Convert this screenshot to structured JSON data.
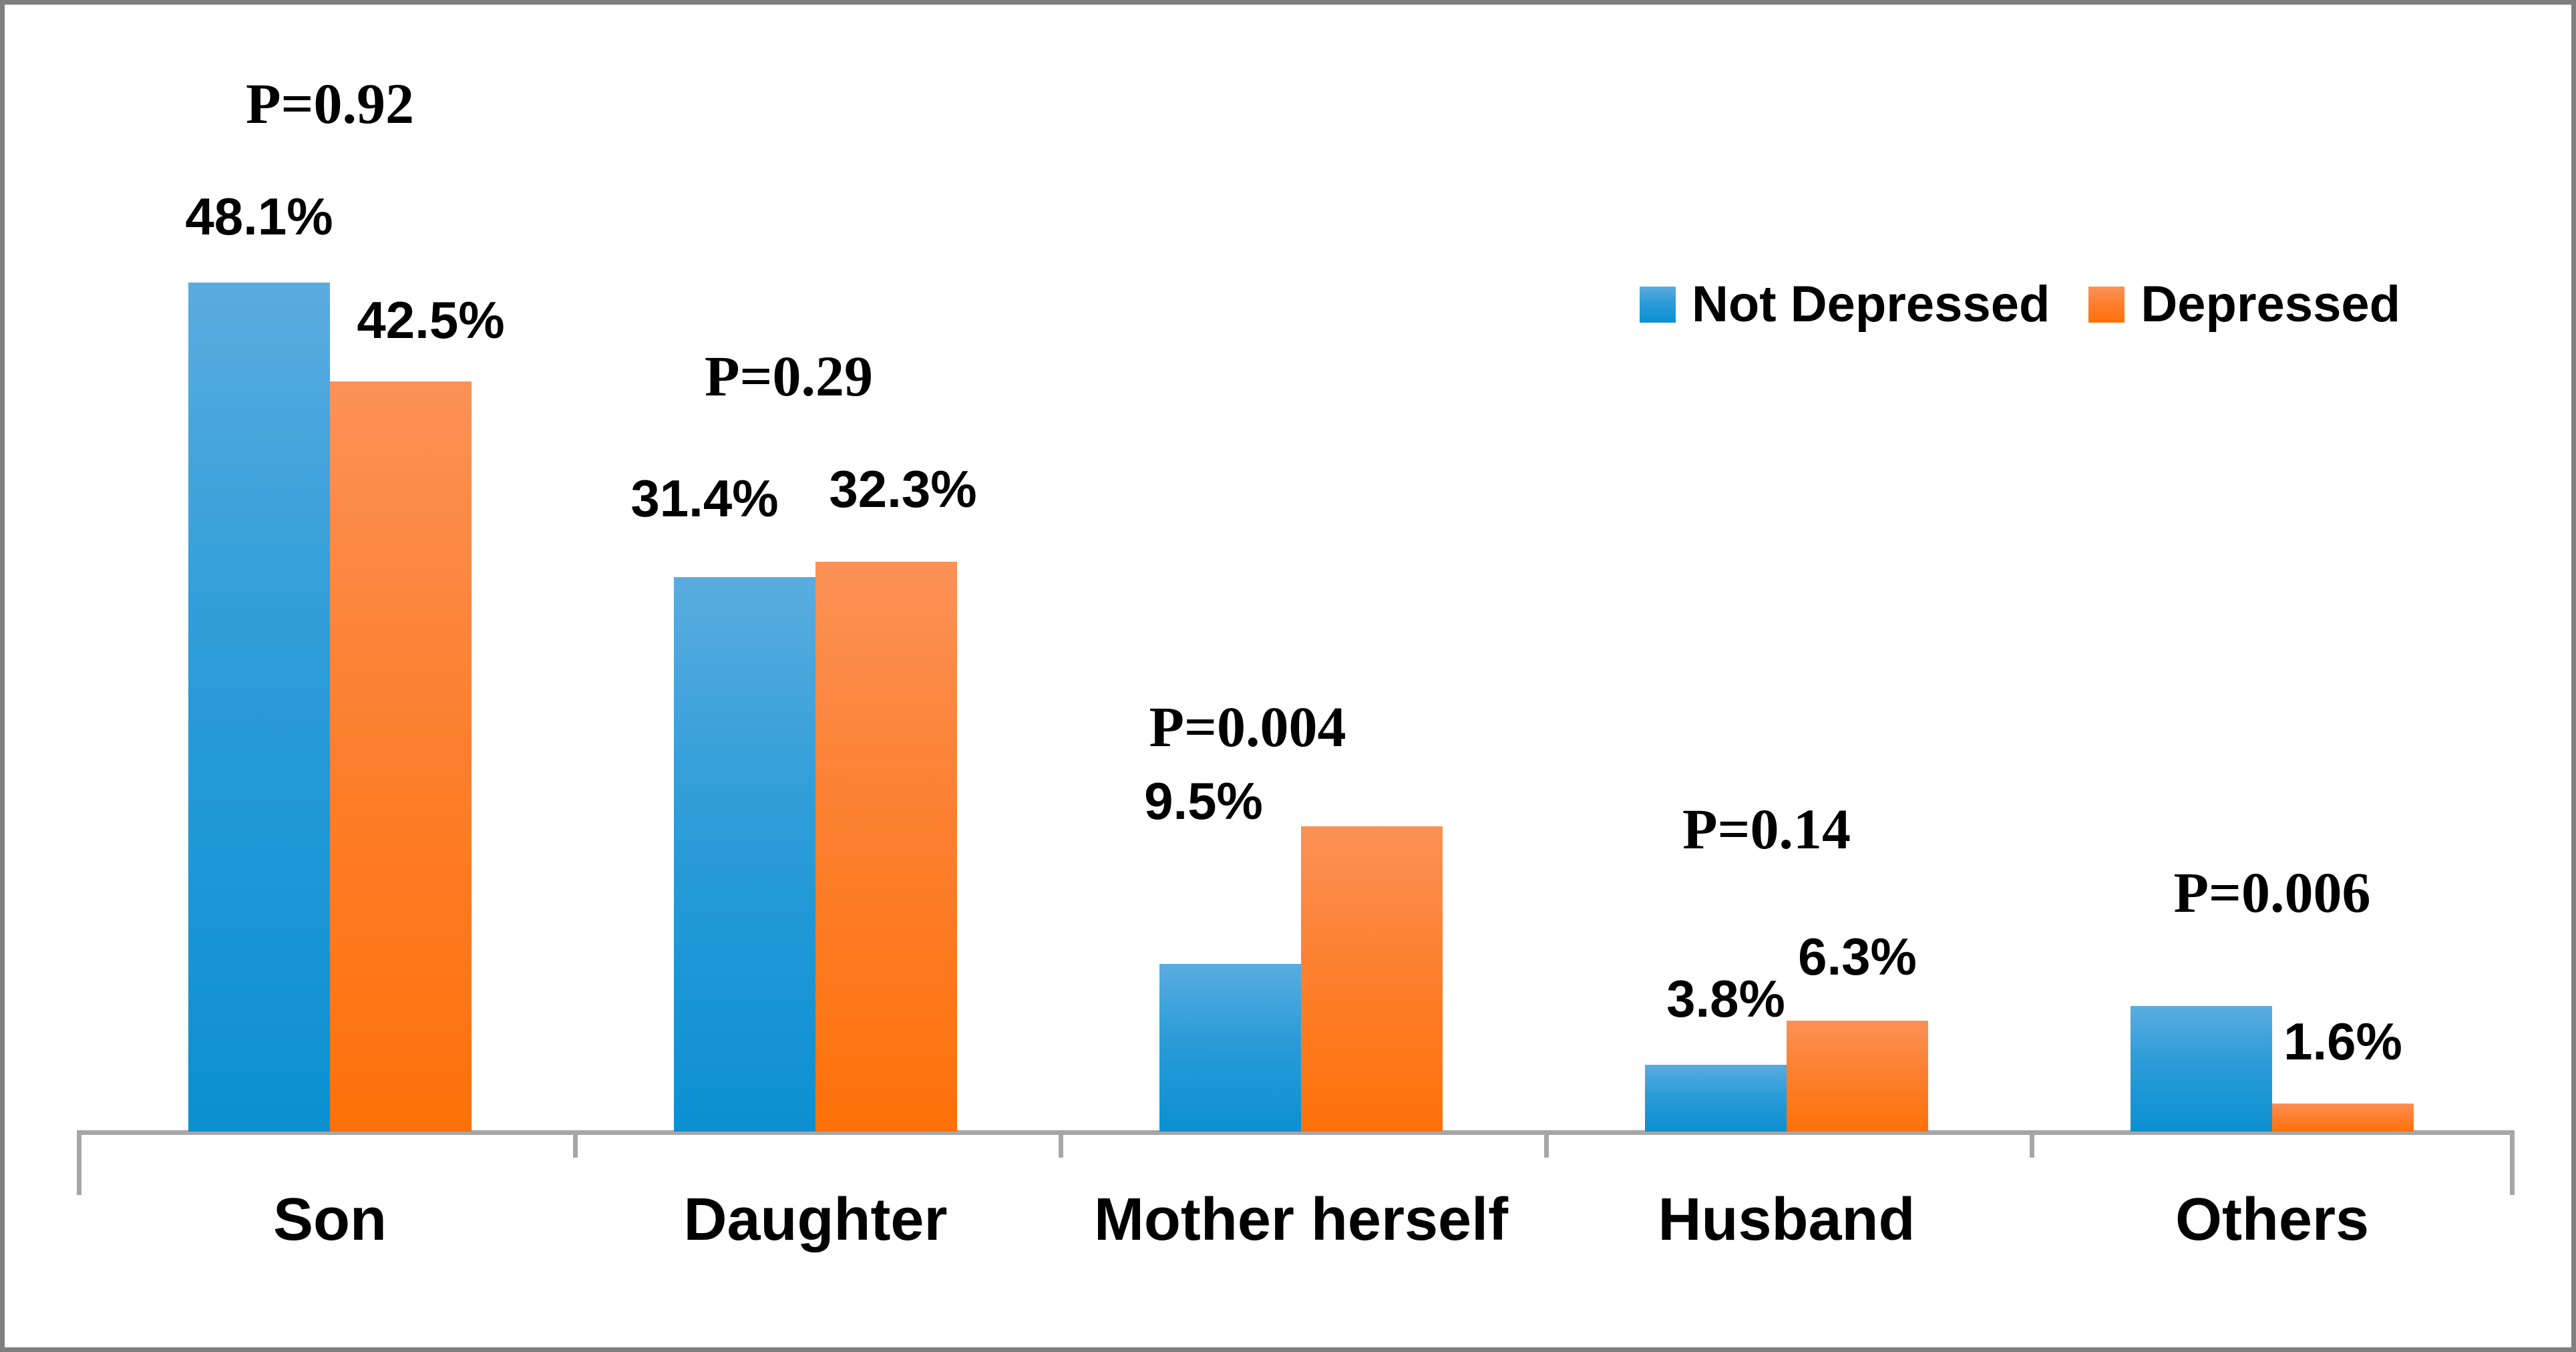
{
  "figure": {
    "background_color": "#FFFFFF",
    "border_color": "#7F7F7F"
  },
  "colors": {
    "not_depressed_top": "#5AACDF",
    "not_depressed_bottom": "#0B90D2",
    "depressed_top": "#FB9156",
    "depressed_bottom": "#FE7109",
    "axis": "#A6A6A6",
    "label_text": "#000000"
  },
  "legend": {
    "position": "top-right",
    "items": [
      {
        "label": "Not Depressed",
        "swatch": "blue-gradient-swatch"
      },
      {
        "label": "Depressed",
        "swatch": "orange-gradient-swatch"
      }
    ]
  },
  "chart_data": {
    "type": "bar",
    "title": "",
    "xlabel": "",
    "ylabel": "",
    "grid": false,
    "y_axis_visible": false,
    "ylim": [
      0,
      64
    ],
    "legend_position": "top-right",
    "categories": [
      "Son",
      "Daughter",
      "Mother herself",
      "Husband",
      "Others"
    ],
    "series": [
      {
        "name": "Not Depressed",
        "values": [
          48.1,
          31.4,
          9.5,
          3.8,
          7.1
        ],
        "data_labels": [
          "48.1%",
          "31.4%",
          "9.5%",
          "3.8%",
          ""
        ]
      },
      {
        "name": "Depressed",
        "values": [
          42.5,
          32.3,
          17.3,
          6.3,
          1.6
        ],
        "data_labels": [
          "42.5%",
          "32.3%",
          "",
          "6.3%",
          "1.6%"
        ]
      }
    ],
    "p_values": [
      "P=0.92",
      "P=0.29",
      "P=0.004",
      "P=0.14",
      "P=0.006"
    ]
  }
}
